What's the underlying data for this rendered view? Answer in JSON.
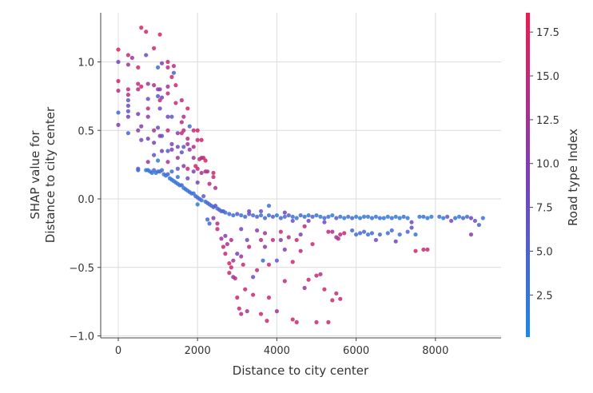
{
  "chart_data": {
    "type": "scatter",
    "title": "",
    "xlabel": "Distance to city center",
    "ylabel_lines": [
      "SHAP value for",
      "Distance to city center"
    ],
    "xlim": [
      -400,
      9600
    ],
    "ylim": [
      -1.02,
      1.35
    ],
    "xticks": [
      0,
      2000,
      4000,
      6000,
      8000
    ],
    "yticks": [
      -1.0,
      -0.5,
      0.0,
      0.5,
      1.0
    ],
    "ytick_labels": [
      "−1.0",
      "−0.5",
      "0.0",
      "0.5",
      "1.0"
    ],
    "grid": true,
    "colorbar": {
      "label": "Road type Index",
      "range": [
        0.1,
        18.6
      ],
      "ticks": [
        2.5,
        5.0,
        7.5,
        10.0,
        12.5,
        15.0,
        17.5
      ],
      "tick_labels": [
        "2.5",
        "5.0",
        "7.5",
        "10.0",
        "12.5",
        "15.0",
        "17.5"
      ],
      "colors": [
        "#1e88e5",
        "#7b3fb7",
        "#ea1d52"
      ]
    },
    "points": [
      [
        0,
        1.09,
        17
      ],
      [
        0,
        1.0,
        9
      ],
      [
        0,
        0.86,
        16
      ],
      [
        0,
        0.79,
        15
      ],
      [
        0,
        0.63,
        4
      ],
      [
        0,
        0.54,
        10
      ],
      [
        250,
        1.05,
        15
      ],
      [
        250,
        0.98,
        11
      ],
      [
        250,
        0.8,
        15
      ],
      [
        250,
        0.76,
        14
      ],
      [
        250,
        0.72,
        6
      ],
      [
        250,
        0.68,
        8
      ],
      [
        250,
        0.64,
        7
      ],
      [
        250,
        0.6,
        9
      ],
      [
        250,
        0.48,
        5
      ],
      [
        350,
        1.03,
        12
      ],
      [
        500,
        0.96,
        16
      ],
      [
        500,
        0.84,
        15
      ],
      [
        500,
        0.8,
        14
      ],
      [
        500,
        0.62,
        9
      ],
      [
        500,
        0.5,
        11
      ],
      [
        500,
        0.22,
        5
      ],
      [
        500,
        0.21,
        4
      ],
      [
        580,
        1.25,
        17
      ],
      [
        580,
        0.82,
        16
      ],
      [
        580,
        0.53,
        10
      ],
      [
        580,
        0.43,
        8
      ],
      [
        700,
        1.22,
        16
      ],
      [
        700,
        1.05,
        8
      ],
      [
        750,
        0.84,
        12
      ],
      [
        750,
        0.73,
        7
      ],
      [
        750,
        0.66,
        15
      ],
      [
        750,
        0.6,
        11
      ],
      [
        750,
        0.44,
        9
      ],
      [
        750,
        0.27,
        12
      ],
      [
        750,
        0.21,
        3
      ],
      [
        900,
        1.1,
        16
      ],
      [
        900,
        0.83,
        14
      ],
      [
        900,
        0.5,
        13
      ],
      [
        900,
        0.41,
        9
      ],
      [
        900,
        0.32,
        7
      ],
      [
        900,
        0.21,
        4
      ],
      [
        1000,
        0.96,
        3
      ],
      [
        1000,
        0.8,
        12
      ],
      [
        1000,
        0.75,
        6
      ],
      [
        1000,
        0.52,
        8
      ],
      [
        1000,
        0.28,
        2
      ],
      [
        1000,
        0.2,
        5
      ],
      [
        1050,
        1.2,
        17
      ],
      [
        1050,
        0.8,
        10
      ],
      [
        1050,
        0.72,
        16
      ],
      [
        1050,
        0.66,
        9
      ],
      [
        1050,
        0.46,
        11
      ],
      [
        1100,
        0.99,
        10
      ],
      [
        1100,
        0.74,
        8
      ],
      [
        1100,
        0.46,
        7
      ],
      [
        1100,
        0.35,
        9
      ],
      [
        1100,
        0.21,
        4
      ],
      [
        1250,
        1.0,
        16
      ],
      [
        1250,
        0.96,
        15
      ],
      [
        1250,
        0.82,
        12
      ],
      [
        1250,
        0.77,
        15
      ],
      [
        1250,
        0.6,
        8
      ],
      [
        1250,
        0.5,
        16
      ],
      [
        1250,
        0.35,
        6
      ],
      [
        1250,
        0.27,
        13
      ],
      [
        1250,
        0.18,
        5
      ],
      [
        1350,
        0.89,
        16
      ],
      [
        1350,
        0.6,
        6
      ],
      [
        1350,
        0.4,
        9
      ],
      [
        1350,
        0.36,
        10
      ],
      [
        1350,
        0.2,
        3
      ],
      [
        1400,
        0.97,
        15
      ],
      [
        1400,
        0.92,
        5
      ],
      [
        1450,
        0.83,
        16
      ],
      [
        1450,
        0.7,
        16
      ],
      [
        1500,
        0.48,
        10
      ],
      [
        1500,
        0.38,
        8
      ],
      [
        1500,
        0.3,
        12
      ],
      [
        1500,
        0.22,
        7
      ],
      [
        1500,
        0.16,
        3
      ],
      [
        1600,
        0.72,
        15
      ],
      [
        1600,
        0.56,
        14
      ],
      [
        1600,
        0.48,
        16
      ],
      [
        1600,
        0.34,
        7
      ],
      [
        1650,
        0.6,
        13
      ],
      [
        1650,
        0.5,
        15
      ],
      [
        1650,
        0.38,
        6
      ],
      [
        1650,
        0.24,
        10
      ],
      [
        1750,
        0.66,
        17
      ],
      [
        1750,
        0.44,
        15
      ],
      [
        1750,
        0.4,
        12
      ],
      [
        1750,
        0.22,
        16
      ],
      [
        1750,
        0.15,
        8
      ],
      [
        1800,
        0.53,
        4
      ],
      [
        1800,
        0.36,
        11
      ],
      [
        1900,
        0.5,
        16
      ],
      [
        1900,
        0.38,
        14
      ],
      [
        1900,
        0.3,
        12
      ],
      [
        1900,
        0.2,
        9
      ],
      [
        1950,
        0.24,
        16
      ],
      [
        2000,
        0.5,
        17
      ],
      [
        2000,
        0.43,
        16
      ],
      [
        2000,
        0.22,
        15
      ],
      [
        2000,
        0.12,
        9
      ],
      [
        2050,
        0.29,
        15
      ],
      [
        2100,
        0.43,
        16
      ],
      [
        2100,
        0.3,
        14
      ],
      [
        2100,
        0.19,
        12
      ],
      [
        2150,
        0.3,
        16
      ],
      [
        2200,
        0.28,
        17
      ],
      [
        2200,
        0.2,
        15
      ],
      [
        2250,
        0.2,
        13
      ],
      [
        2300,
        0.11,
        14
      ],
      [
        2400,
        0.19,
        16
      ],
      [
        2400,
        0.16,
        15
      ],
      [
        2450,
        0.08,
        13
      ],
      [
        700,
        0.21,
        2
      ],
      [
        800,
        0.2,
        2
      ],
      [
        850,
        0.19,
        3
      ],
      [
        950,
        0.19,
        2
      ],
      [
        1050,
        0.2,
        3
      ],
      [
        1150,
        0.18,
        2
      ],
      [
        1200,
        0.17,
        3
      ],
      [
        1300,
        0.15,
        2
      ],
      [
        1350,
        0.14,
        3
      ],
      [
        1400,
        0.13,
        2
      ],
      [
        1450,
        0.12,
        3
      ],
      [
        1500,
        0.11,
        2
      ],
      [
        1550,
        0.1,
        3
      ],
      [
        1600,
        0.1,
        4
      ],
      [
        1650,
        0.08,
        2
      ],
      [
        1700,
        0.07,
        3
      ],
      [
        1750,
        0.06,
        2
      ],
      [
        1800,
        0.05,
        4
      ],
      [
        1850,
        0.04,
        3
      ],
      [
        1900,
        0.04,
        2
      ],
      [
        1950,
        0.02,
        5
      ],
      [
        2000,
        0.01,
        3
      ],
      [
        2000,
        -0.04,
        2
      ],
      [
        2050,
        0.0,
        4
      ],
      [
        2100,
        -0.01,
        3
      ],
      [
        2150,
        0.02,
        6
      ],
      [
        2200,
        -0.02,
        3
      ],
      [
        2250,
        -0.03,
        4
      ],
      [
        2300,
        -0.04,
        5
      ],
      [
        2350,
        -0.05,
        3
      ],
      [
        2400,
        -0.06,
        4
      ],
      [
        2450,
        -0.05,
        7
      ],
      [
        2500,
        -0.07,
        3
      ],
      [
        2550,
        -0.08,
        5
      ],
      [
        2600,
        -0.09,
        4
      ],
      [
        2650,
        -0.09,
        6
      ],
      [
        2700,
        -0.1,
        3
      ],
      [
        2800,
        -0.11,
        4
      ],
      [
        2900,
        -0.12,
        3
      ],
      [
        3000,
        -0.11,
        6
      ],
      [
        3100,
        -0.12,
        3
      ],
      [
        3200,
        -0.13,
        4
      ],
      [
        3300,
        -0.11,
        7
      ],
      [
        3400,
        -0.12,
        3
      ],
      [
        3500,
        -0.13,
        5
      ],
      [
        3600,
        -0.12,
        3
      ],
      [
        3700,
        -0.14,
        4
      ],
      [
        3800,
        -0.05,
        3
      ],
      [
        3800,
        -0.12,
        3
      ],
      [
        3900,
        -0.13,
        5
      ],
      [
        4000,
        -0.12,
        2
      ],
      [
        4100,
        -0.14,
        4
      ],
      [
        4200,
        -0.13,
        3
      ],
      [
        4300,
        -0.12,
        6
      ],
      [
        4400,
        -0.13,
        3
      ],
      [
        4500,
        -0.14,
        2
      ],
      [
        4600,
        -0.12,
        4
      ],
      [
        4700,
        -0.13,
        3
      ],
      [
        4800,
        -0.12,
        2
      ],
      [
        4900,
        -0.13,
        5
      ],
      [
        5000,
        -0.12,
        3
      ],
      [
        5100,
        -0.13,
        2
      ],
      [
        5200,
        -0.14,
        4
      ],
      [
        5300,
        -0.13,
        3
      ],
      [
        5400,
        -0.12,
        2
      ],
      [
        5500,
        -0.14,
        6
      ],
      [
        5600,
        -0.13,
        3
      ],
      [
        5700,
        -0.14,
        2
      ],
      [
        5800,
        -0.13,
        3
      ],
      [
        5900,
        -0.14,
        4
      ],
      [
        6000,
        -0.13,
        2
      ],
      [
        6100,
        -0.14,
        2
      ],
      [
        6200,
        -0.13,
        3
      ],
      [
        6300,
        -0.13,
        2
      ],
      [
        6400,
        -0.14,
        3
      ],
      [
        6500,
        -0.13,
        2
      ],
      [
        6600,
        -0.14,
        3
      ],
      [
        6700,
        -0.14,
        2
      ],
      [
        6800,
        -0.13,
        2
      ],
      [
        6900,
        -0.14,
        3
      ],
      [
        7000,
        -0.13,
        2
      ],
      [
        7100,
        -0.14,
        2
      ],
      [
        7200,
        -0.13,
        3
      ],
      [
        7300,
        -0.14,
        2
      ],
      [
        7600,
        -0.13,
        2
      ],
      [
        7700,
        -0.13,
        3
      ],
      [
        7800,
        -0.14,
        2
      ],
      [
        7900,
        -0.13,
        2
      ],
      [
        8100,
        -0.13,
        3
      ],
      [
        8200,
        -0.14,
        2
      ],
      [
        8300,
        -0.13,
        7
      ],
      [
        8500,
        -0.14,
        3
      ],
      [
        8600,
        -0.13,
        2
      ],
      [
        8700,
        -0.14,
        4
      ],
      [
        8800,
        -0.13,
        3
      ],
      [
        8900,
        -0.14,
        9
      ],
      [
        9000,
        -0.16,
        7
      ],
      [
        9100,
        -0.19,
        5
      ],
      [
        9200,
        -0.14,
        3
      ],
      [
        8400,
        -0.16,
        8
      ],
      [
        7400,
        -0.17,
        8
      ],
      [
        4400,
        -0.16,
        7
      ],
      [
        4800,
        -0.16,
        9
      ],
      [
        5200,
        -0.17,
        8
      ],
      [
        3300,
        -0.09,
        8
      ],
      [
        3600,
        -0.09,
        7
      ],
      [
        4200,
        -0.1,
        9
      ],
      [
        5900,
        -0.23,
        4
      ],
      [
        6000,
        -0.26,
        3
      ],
      [
        6100,
        -0.25,
        4
      ],
      [
        6200,
        -0.24,
        5
      ],
      [
        6300,
        -0.26,
        3
      ],
      [
        6400,
        -0.25,
        4
      ],
      [
        6500,
        -0.3,
        8
      ],
      [
        6600,
        -0.26,
        4
      ],
      [
        6800,
        -0.25,
        3
      ],
      [
        6900,
        -0.23,
        4
      ],
      [
        7000,
        -0.31,
        9
      ],
      [
        7100,
        -0.26,
        3
      ],
      [
        7300,
        -0.24,
        4
      ],
      [
        7400,
        -0.21,
        7
      ],
      [
        7500,
        -0.26,
        3
      ],
      [
        5600,
        -0.26,
        15
      ],
      [
        5700,
        -0.25,
        16
      ],
      [
        5400,
        -0.24,
        12
      ],
      [
        5500,
        -0.28,
        13
      ],
      [
        8900,
        -0.26,
        10
      ],
      [
        7500,
        -0.38,
        16
      ],
      [
        7700,
        -0.37,
        16
      ],
      [
        7800,
        -0.37,
        17
      ],
      [
        2250,
        -0.15,
        4
      ],
      [
        2300,
        -0.18,
        4
      ],
      [
        2400,
        -0.14,
        12
      ],
      [
        2500,
        -0.18,
        14
      ],
      [
        2500,
        -0.22,
        15
      ],
      [
        2600,
        -0.29,
        13
      ],
      [
        2650,
        -0.35,
        16
      ],
      [
        2700,
        -0.4,
        16
      ],
      [
        2700,
        -0.27,
        10
      ],
      [
        2750,
        -0.33,
        12
      ],
      [
        2800,
        -0.47,
        17
      ],
      [
        2800,
        -0.54,
        16
      ],
      [
        2850,
        -0.3,
        14
      ],
      [
        2850,
        -0.5,
        16
      ],
      [
        2900,
        -0.45,
        12
      ],
      [
        2900,
        -0.57,
        10
      ],
      [
        2950,
        -0.58,
        15
      ],
      [
        3000,
        -0.4,
        9
      ],
      [
        3000,
        -0.72,
        16
      ],
      [
        3050,
        -0.8,
        15
      ],
      [
        3100,
        -0.84,
        14
      ],
      [
        3100,
        -0.42,
        12
      ],
      [
        3150,
        -0.48,
        16
      ],
      [
        3200,
        -0.66,
        16
      ],
      [
        3250,
        -0.82,
        12
      ],
      [
        3250,
        -0.3,
        8
      ],
      [
        3300,
        -0.35,
        14
      ],
      [
        3400,
        -0.57,
        7
      ],
      [
        3400,
        -0.7,
        16
      ],
      [
        3500,
        -0.23,
        11
      ],
      [
        3500,
        -0.52,
        15
      ],
      [
        3600,
        -0.84,
        16
      ],
      [
        3600,
        -0.3,
        14
      ],
      [
        3650,
        -0.45,
        4
      ],
      [
        3700,
        -0.25,
        13
      ],
      [
        3750,
        -0.89,
        16
      ],
      [
        3800,
        -0.72,
        15
      ],
      [
        3800,
        -0.48,
        16
      ],
      [
        3900,
        -0.3,
        16
      ],
      [
        4000,
        -0.82,
        12
      ],
      [
        4000,
        -0.45,
        6
      ],
      [
        4100,
        -0.24,
        15
      ],
      [
        4200,
        -0.37,
        10
      ],
      [
        4300,
        -0.28,
        14
      ],
      [
        4400,
        -0.46,
        16
      ],
      [
        4400,
        -0.88,
        17
      ],
      [
        4500,
        -0.3,
        16
      ],
      [
        4600,
        -0.38,
        14
      ],
      [
        4700,
        -0.2,
        15
      ],
      [
        4700,
        -0.65,
        12
      ],
      [
        4800,
        -0.59,
        16
      ],
      [
        4900,
        -0.33,
        16
      ],
      [
        5000,
        -0.56,
        16
      ],
      [
        5000,
        -0.9,
        16
      ],
      [
        5100,
        -0.55,
        14
      ],
      [
        5200,
        -0.66,
        16
      ],
      [
        5300,
        -0.9,
        16
      ],
      [
        5300,
        -0.24,
        16
      ],
      [
        5400,
        -0.74,
        16
      ],
      [
        5500,
        -0.69,
        15
      ],
      [
        5550,
        -0.29,
        13
      ],
      [
        5600,
        -0.73,
        15
      ],
      [
        4500,
        -0.9,
        16
      ],
      [
        4200,
        -0.6,
        15
      ],
      [
        4600,
        -0.26,
        9
      ],
      [
        3100,
        -0.22,
        8
      ],
      [
        3700,
        -0.35,
        11
      ],
      [
        4100,
        -0.3,
        9
      ]
    ]
  }
}
